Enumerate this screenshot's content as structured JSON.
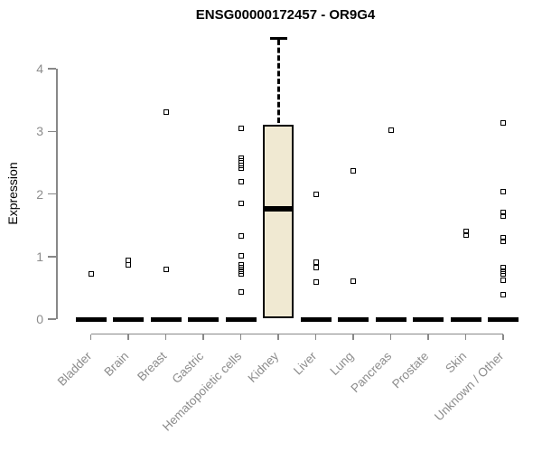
{
  "title": "ENSG00000172457 - OR9G4",
  "chart_data": {
    "type": "boxplot",
    "title": "ENSG00000172457 - OR9G4",
    "xlabel": "",
    "ylabel": "Expression",
    "ylim": [
      0,
      4.5
    ],
    "yticks": [
      0,
      1,
      2,
      3,
      4
    ],
    "grid": false,
    "legend": false,
    "categories": [
      "Bladder",
      "Brain",
      "Breast",
      "Gastric",
      "Hematopoietic cells",
      "Kidney",
      "Liver",
      "Lung",
      "Pancreas",
      "Prostate",
      "Skin",
      "Unknown / Other"
    ],
    "series": [
      {
        "category": "Bladder",
        "box": {
          "q1": 0,
          "median": 0,
          "q3": 0
        },
        "points": [
          0.72
        ]
      },
      {
        "category": "Brain",
        "box": {
          "q1": 0,
          "median": 0,
          "q3": 0
        },
        "points": [
          0.94,
          0.86
        ]
      },
      {
        "category": "Breast",
        "box": {
          "q1": 0,
          "median": 0,
          "q3": 0
        },
        "points": [
          3.3,
          0.79
        ]
      },
      {
        "category": "Gastric",
        "box": {
          "q1": 0,
          "median": 0,
          "q3": 0
        },
        "points": []
      },
      {
        "category": "Hematopoietic cells",
        "box": {
          "q1": 0,
          "median": 0,
          "q3": 0
        },
        "points": [
          3.04,
          2.57,
          2.52,
          2.46,
          2.41,
          2.19,
          1.85,
          1.33,
          1.01,
          0.87,
          0.82,
          0.77,
          0.72,
          0.44
        ]
      },
      {
        "category": "Kidney",
        "box": {
          "q1": 0.02,
          "median": 1.76,
          "q3": 3.1,
          "whisker_high": 4.49
        },
        "points": []
      },
      {
        "category": "Liver",
        "box": {
          "q1": 0,
          "median": 0,
          "q3": 0
        },
        "points": [
          1.99,
          0.91,
          0.83,
          0.59
        ]
      },
      {
        "category": "Lung",
        "box": {
          "q1": 0,
          "median": 0,
          "q3": 0
        },
        "points": [
          2.37,
          0.6
        ]
      },
      {
        "category": "Pancreas",
        "box": {
          "q1": 0,
          "median": 0,
          "q3": 0
        },
        "points": [
          3.02
        ]
      },
      {
        "category": "Prostate",
        "box": {
          "q1": 0,
          "median": 0,
          "q3": 0
        },
        "points": []
      },
      {
        "category": "Skin",
        "box": {
          "q1": 0,
          "median": 0,
          "q3": 0
        },
        "points": [
          1.4,
          1.34
        ]
      },
      {
        "category": "Unknown / Other",
        "box": {
          "q1": 0,
          "median": 0,
          "q3": 0
        },
        "points": [
          3.13,
          2.03,
          1.7,
          1.64,
          1.3,
          1.24,
          0.82,
          0.77,
          0.72,
          0.62,
          0.39
        ]
      }
    ],
    "colors": {
      "background": "#ffffff",
      "box_fill": "#F0E9D2",
      "box_border": "#000000",
      "median": "#000000",
      "point": "#000000",
      "axis": "#888888",
      "tick_label": "#8C8C8C",
      "title": "#000000"
    }
  }
}
